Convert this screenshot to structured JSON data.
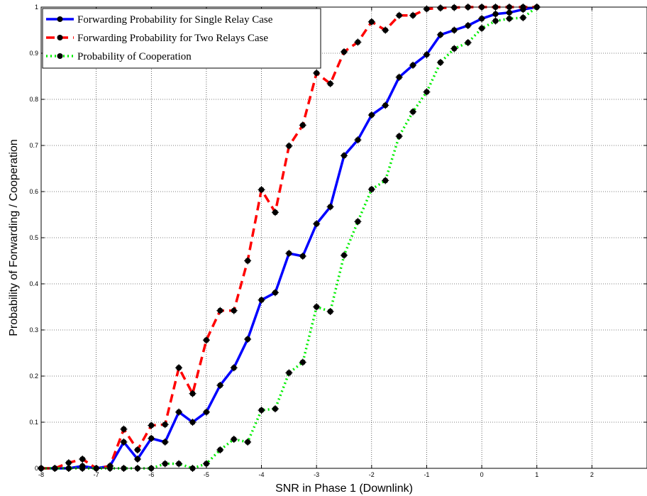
{
  "chart_data": {
    "type": "line",
    "title": "",
    "xlabel": "SNR in Phase 1 (Downlink)",
    "ylabel": "Probability of Forwarding / Cooperation",
    "xlim": [
      -8,
      3
    ],
    "ylim": [
      0,
      1
    ],
    "xticks": [
      -8,
      -7,
      -6,
      -5,
      -4,
      -3,
      -2,
      -1,
      0,
      1,
      2
    ],
    "xtick_labels": [
      "-8",
      "-7",
      "-6",
      "-5",
      "-4",
      "-3",
      "-2",
      "-1",
      "0",
      "1",
      "2"
    ],
    "yticks": [
      0,
      0.1,
      0.2,
      0.3,
      0.4,
      0.5,
      0.6,
      0.7,
      0.8,
      0.9,
      1
    ],
    "ytick_labels": [
      "0",
      "0.1",
      "0.2",
      "0.3",
      "0.4",
      "0.5",
      "0.6",
      "0.7",
      "0.8",
      "0.9",
      "1"
    ],
    "grid": true,
    "legend_position": "top-left",
    "x": [
      -8,
      -7.75,
      -7.5,
      -7.25,
      -7,
      -6.75,
      -6.5,
      -6.25,
      -6,
      -5.75,
      -5.5,
      -5.25,
      -5,
      -4.75,
      -4.5,
      -4.25,
      -4,
      -3.75,
      -3.5,
      -3.25,
      -3,
      -2.75,
      -2.5,
      -2.25,
      -2,
      -1.75,
      -1.5,
      -1.25,
      -1,
      -0.75,
      -0.5,
      -0.25,
      0,
      0.25,
      0.5,
      0.75,
      1
    ],
    "series": [
      {
        "name": "Forwarding Probability for Single Relay Case",
        "color": "#0000ff",
        "style": "solid",
        "values": [
          0,
          0,
          0,
          0.005,
          0,
          0.005,
          0.057,
          0.02,
          0.065,
          0.057,
          0.122,
          0.1,
          0.122,
          0.18,
          0.218,
          0.28,
          0.365,
          0.381,
          0.466,
          0.46,
          0.53,
          0.567,
          0.678,
          0.712,
          0.766,
          0.787,
          0.848,
          0.874,
          0.897,
          0.94,
          0.95,
          0.96,
          0.975,
          0.985,
          0.988,
          0.995,
          1
        ]
      },
      {
        "name": "Forwarding Probability for Two Relays Case",
        "color": "#ff0000",
        "style": "dashed",
        "values": [
          0,
          0,
          0.012,
          0.02,
          0,
          0.005,
          0.085,
          0.04,
          0.093,
          0.095,
          0.218,
          0.162,
          0.278,
          0.342,
          0.342,
          0.45,
          0.604,
          0.555,
          0.699,
          0.744,
          0.857,
          0.834,
          0.903,
          0.924,
          0.968,
          0.95,
          0.982,
          0.982,
          0.996,
          0.998,
          0.999,
          1,
          1,
          1,
          1,
          1,
          1
        ]
      },
      {
        "name": "Probability of Cooperation",
        "color": "#00ee00",
        "style": "dotted",
        "values": [
          0,
          0,
          0,
          0,
          0,
          0,
          0,
          0,
          0,
          0.01,
          0.01,
          0,
          0.01,
          0.04,
          0.063,
          0.057,
          0.126,
          0.129,
          0.207,
          0.23,
          0.35,
          0.34,
          0.462,
          0.535,
          0.605,
          0.624,
          0.72,
          0.773,
          0.816,
          0.88,
          0.91,
          0.923,
          0.954,
          0.97,
          0.975,
          0.977,
          1
        ]
      }
    ]
  }
}
